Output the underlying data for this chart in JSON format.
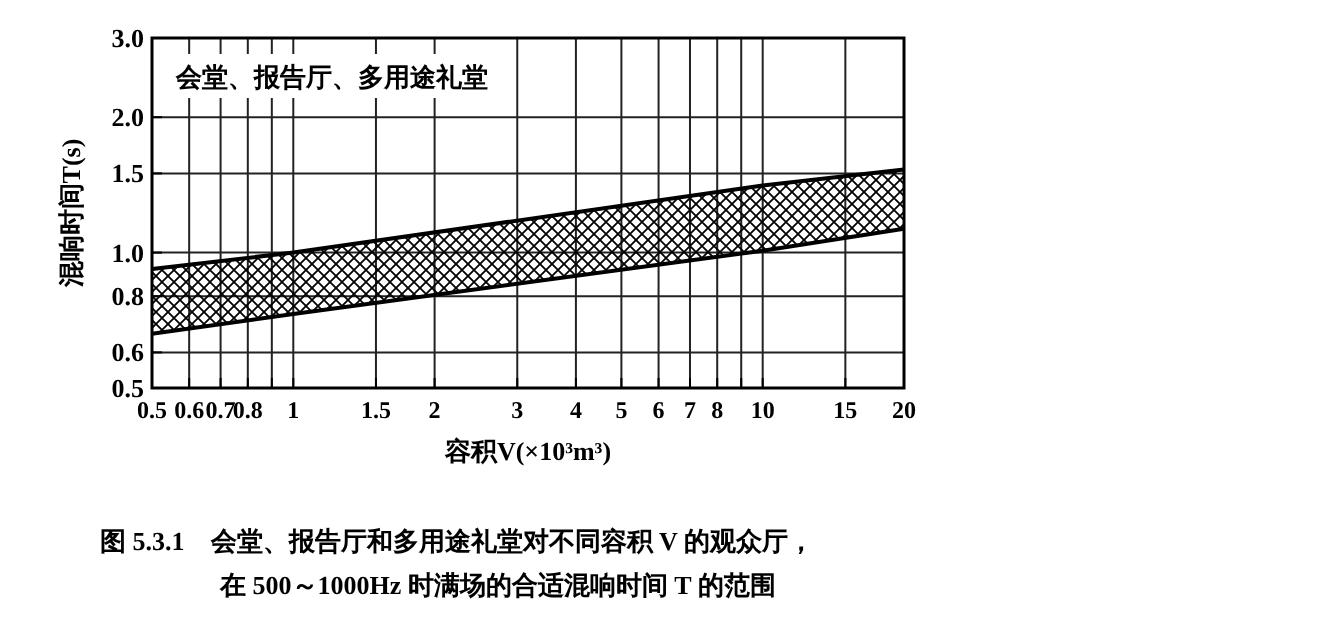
{
  "chart_data": {
    "type": "area",
    "title": "会堂、报告厅、多用途礼堂",
    "xlabel": "容积V(×10³m³)",
    "ylabel": "混响时间T(s)",
    "annotations": [
      "图 5.3.1　会堂、报告厅和多用途礼堂对不同容积 V 的观众厅，",
      "在 500～1000Hz 时满场的合适混响时间 T 的范围"
    ],
    "log": "xy",
    "grid": true,
    "xlim": [
      0.5,
      20
    ],
    "ylim": [
      0.5,
      3.0
    ],
    "xticks": [
      0.5,
      0.6,
      0.7,
      0.8,
      {
        "value": 0.9,
        "label": null
      },
      1,
      1.5,
      2,
      3,
      4,
      5,
      6,
      7,
      8,
      {
        "value": 9,
        "label": null
      },
      10,
      15,
      20
    ],
    "yticks": [
      0.5,
      0.6,
      0.8,
      {
        "value": 1,
        "label": "1.0"
      },
      1.5,
      {
        "value": 2,
        "label": "2.0"
      },
      {
        "value": 3,
        "label": "3.0"
      }
    ],
    "series": [
      {
        "color": "#000000",
        "x": [
          0.5,
          1,
          10,
          20
        ],
        "values": [
          0.92,
          1.0,
          1.41,
          1.53
        ]
      },
      {
        "type": "line",
        "color": "#000000",
        "x": [
          0.5,
          1,
          10,
          20
        ],
        "values": [
          0.66,
          0.73,
          1.01,
          1.13
        ]
      }
    ]
  }
}
